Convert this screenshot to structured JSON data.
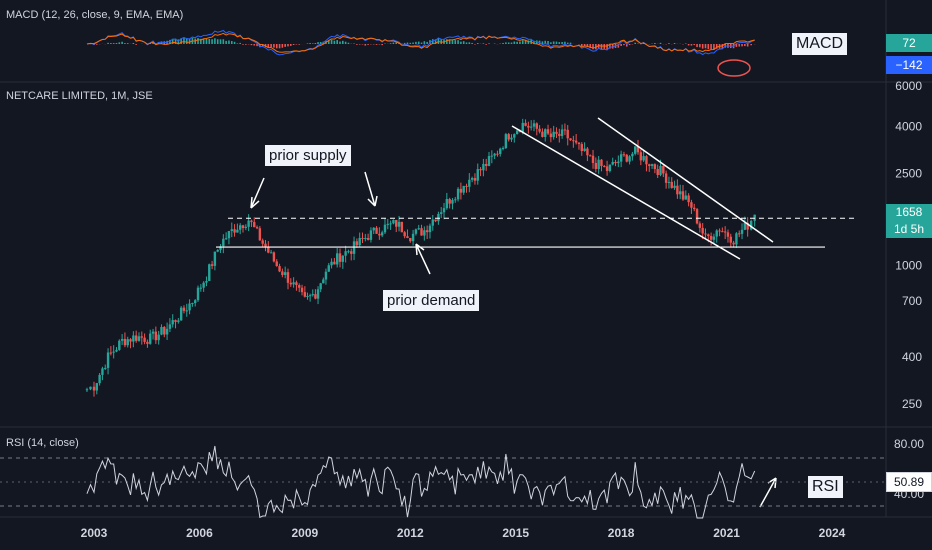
{
  "chart_data": {
    "type": "candlestick",
    "title": "NETCARE LIMITED, 1M, JSE",
    "y_scale": "log",
    "ylim": [
      200,
      6000
    ],
    "y_ticks": [
      "6000",
      "4000",
      "2500",
      "1000",
      "700",
      "400",
      "250"
    ],
    "y_tick_values": [
      6000,
      4000,
      2500,
      1000,
      700,
      400,
      250
    ],
    "x_ticks": [
      "2003",
      "2006",
      "2009",
      "2012",
      "2015",
      "2018",
      "2021",
      "2024"
    ],
    "xlim": [
      2001.6,
      2025.0
    ],
    "series": [
      {
        "points": [
          [
            2002.8,
            290
          ],
          [
            2003.0,
            300
          ],
          [
            2003.4,
            400
          ],
          [
            2003.8,
            470
          ],
          [
            2004.2,
            490
          ],
          [
            2004.6,
            480
          ],
          [
            2005.0,
            520
          ],
          [
            2005.4,
            600
          ],
          [
            2005.8,
            700
          ],
          [
            2006.2,
            900
          ],
          [
            2006.6,
            1250
          ],
          [
            2007.0,
            1450
          ],
          [
            2007.4,
            1580
          ],
          [
            2007.8,
            1250
          ],
          [
            2008.2,
            1000
          ],
          [
            2008.6,
            850
          ],
          [
            2009.0,
            700
          ],
          [
            2009.3,
            760
          ],
          [
            2009.6,
            950
          ],
          [
            2010.0,
            1100
          ],
          [
            2010.4,
            1200
          ],
          [
            2010.8,
            1350
          ],
          [
            2011.2,
            1450
          ],
          [
            2011.6,
            1520
          ],
          [
            2012.0,
            1350
          ],
          [
            2012.4,
            1420
          ],
          [
            2012.8,
            1700
          ],
          [
            2013.2,
            2000
          ],
          [
            2013.6,
            2300
          ],
          [
            2014.0,
            2600
          ],
          [
            2014.4,
            3000
          ],
          [
            2014.8,
            3700
          ],
          [
            2015.2,
            4100
          ],
          [
            2015.6,
            3900
          ],
          [
            2016.0,
            3600
          ],
          [
            2016.4,
            3700
          ],
          [
            2016.8,
            3200
          ],
          [
            2017.2,
            2800
          ],
          [
            2017.6,
            2600
          ],
          [
            2018.0,
            2900
          ],
          [
            2018.4,
            3100
          ],
          [
            2018.8,
            2800
          ],
          [
            2019.2,
            2500
          ],
          [
            2019.6,
            2100
          ],
          [
            2020.0,
            1800
          ],
          [
            2020.4,
            1300
          ],
          [
            2020.8,
            1450
          ],
          [
            2021.2,
            1300
          ],
          [
            2021.6,
            1500
          ],
          [
            2021.8,
            1658
          ]
        ]
      }
    ],
    "levels": {
      "supply": 1600,
      "demand": 1200
    },
    "last_price": "1658",
    "countdown": "1d 5h"
  },
  "annotations": {
    "prior_supply": "prior supply",
    "prior_demand": "prior demand",
    "macd_label": "MACD",
    "rsi_label": "RSI"
  },
  "macd": {
    "title": "MACD (12, 26, close, 9, EMA, EMA)",
    "value_1": "72",
    "value_2": "−142"
  },
  "rsi": {
    "title": "RSI (14, close)",
    "value": "50.89",
    "ticks": [
      "80.00",
      "40.00"
    ]
  },
  "colors": {
    "up": "#26a69a",
    "down": "#ef5350",
    "macd_line": "#2962ff",
    "signal_line": "#ff6d00",
    "rsi_line": "#d1d4dc",
    "tag_teal": "#26a69a",
    "tag_blue": "#2962ff"
  }
}
